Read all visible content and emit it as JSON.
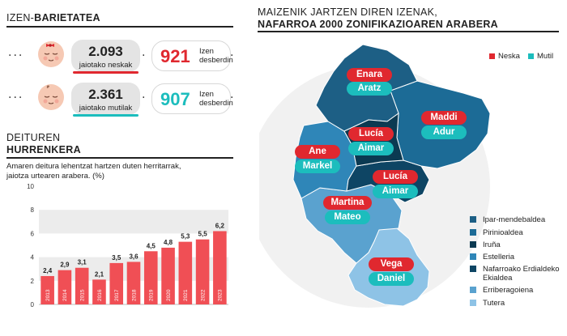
{
  "births": {
    "title_light": "IZEN-",
    "title_bold": "BARIETATEA",
    "girls": {
      "number": "2.093",
      "label": "jaiotako neskak",
      "diff_number": "921",
      "diff_label_1": "Izen",
      "diff_label_2": "desberdin",
      "color": "#e0282f"
    },
    "boys": {
      "number": "2.361",
      "label": "jaiotako mutilak",
      "diff_number": "907",
      "diff_label_1": "Izen",
      "diff_label_2": "desberdin",
      "color": "#1cbdbd"
    }
  },
  "surnames": {
    "title_light": "DEITUREN",
    "title_bold": "HURRENKERA",
    "caption_1": "Amaren deitura lehentzat hartzen duten herritarrak,",
    "caption_2": "jaiotza urtearen arabera. (%)"
  },
  "chart_data": {
    "type": "bar",
    "categories": [
      "2013",
      "2014",
      "2015",
      "2016",
      "2017",
      "2018",
      "2019",
      "2020",
      "2021",
      "2022",
      "2023"
    ],
    "values": [
      2.4,
      2.9,
      3.1,
      2.1,
      3.5,
      3.6,
      4.5,
      4.8,
      5.3,
      5.5,
      6.2
    ],
    "value_labels": [
      "2,4",
      "2,9",
      "3,1",
      "2,1",
      "3,5",
      "3,6",
      "4,5",
      "4,8",
      "5,3",
      "5,5",
      "6,2"
    ],
    "y_ticks": [
      0,
      2,
      4,
      6,
      8,
      10
    ],
    "ylim": [
      0,
      10
    ],
    "bar_color": "#f04f55",
    "grid": "alternating bands"
  },
  "map": {
    "title_1": "MAIZENIK JARTZEN DIREN IZENAK,",
    "title_2": "NAFARROA 2000 ZONIFIKAZIOAREN ARABERA",
    "key": {
      "girl_label": "Neska",
      "boy_label": "Mutil"
    },
    "zones": [
      {
        "girl": "Enara",
        "boy": "Aratz"
      },
      {
        "girl": "Maddi",
        "boy": "Adur"
      },
      {
        "girl": "Lucía",
        "boy": "Aimar"
      },
      {
        "girl": "Ane",
        "boy": "Markel"
      },
      {
        "girl": "Lucía",
        "boy": "Aimar"
      },
      {
        "girl": "Martina",
        "boy": "Mateo"
      },
      {
        "girl": "Vega",
        "boy": "Daniel"
      }
    ],
    "legend": [
      {
        "label": "Ipar-mendebaldea",
        "color": "#1d5f85"
      },
      {
        "label": "Pirinioaldea",
        "color": "#1c6b96"
      },
      {
        "label": "Iruña",
        "color": "#0b3a52"
      },
      {
        "label": "Estelleria",
        "color": "#2f86b8"
      },
      {
        "label": "Nafarroako Erdialdeko",
        "label_2": "Ekialdea",
        "color": "#0e4564"
      },
      {
        "label": "Erriberagoiena",
        "color": "#5aa2cf"
      },
      {
        "label": "Tutera",
        "color": "#8ec3e6"
      }
    ]
  }
}
